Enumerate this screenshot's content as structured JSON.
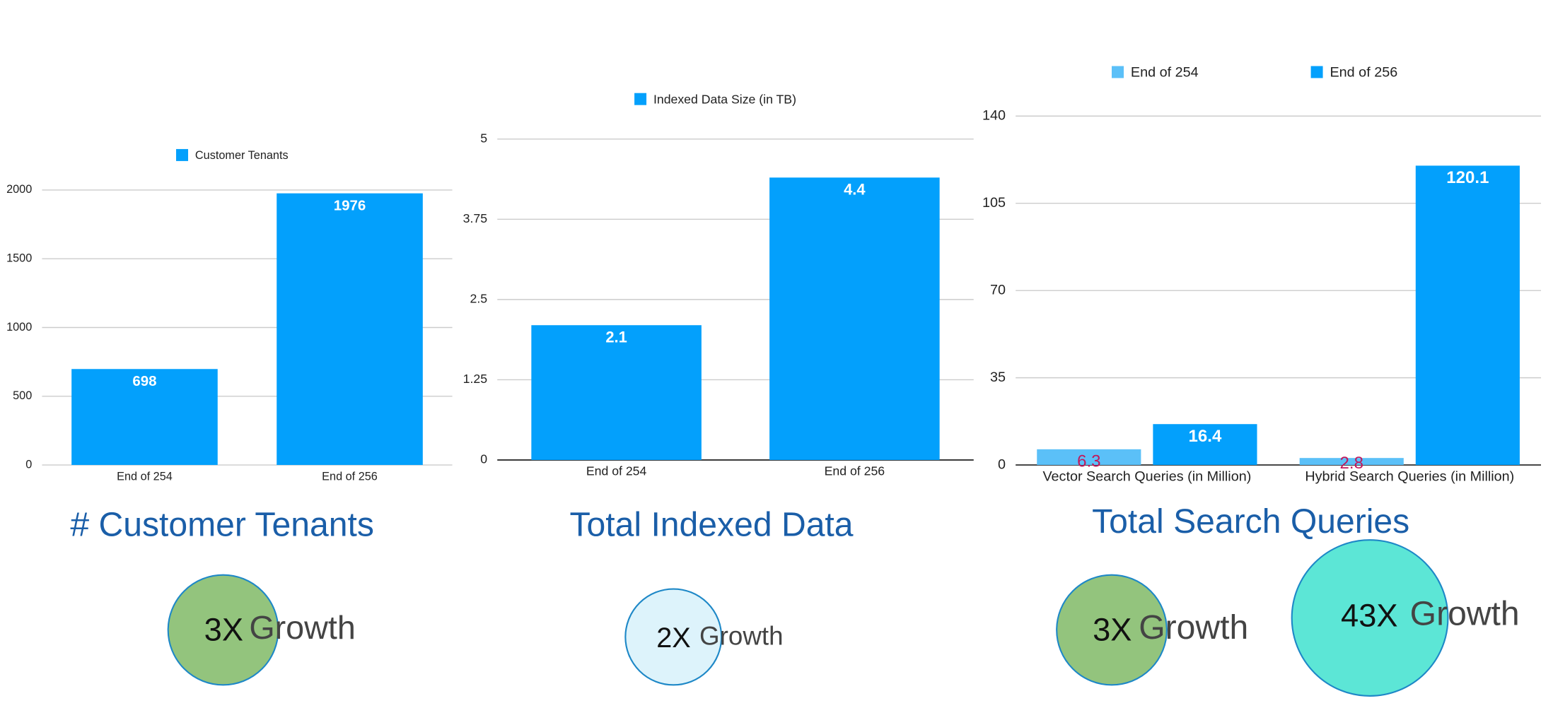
{
  "chart_data": [
    {
      "type": "bar",
      "title": "# Customer Tenants",
      "categories": [
        "End of 254",
        "End of 256"
      ],
      "series": [
        {
          "name": "Customer Tenants",
          "color": "#03a0fc",
          "label_color": "#ffffff",
          "values": [
            698,
            1976
          ]
        }
      ],
      "ylim": [
        0,
        2000
      ],
      "yticks": [
        0,
        500,
        1000,
        1500,
        2000
      ],
      "grid": true,
      "annotations": [
        {
          "multiplier": "3X",
          "text": "Growth",
          "color": "#93c47d"
        }
      ]
    },
    {
      "type": "bar",
      "title": "Total Indexed Data",
      "categories": [
        "End of 254",
        "End of 256"
      ],
      "series": [
        {
          "name": "Indexed Data Size (in TB)",
          "color": "#03a0fc",
          "label_color": "#ffffff",
          "values": [
            2.1,
            4.4
          ]
        }
      ],
      "ylim": [
        0,
        5
      ],
      "yticks": [
        0,
        1.25,
        2.5,
        3.75,
        5
      ],
      "grid": true,
      "annotations": [
        {
          "multiplier": "2X",
          "text": "Growth",
          "color": "#ddf3fb"
        }
      ]
    },
    {
      "type": "bar",
      "title": "Total Search Queries",
      "categories": [
        "Vector Search Queries (in Million)",
        "Hybrid Search Queries (in Million)"
      ],
      "series": [
        {
          "name": "End of 254",
          "color": "#5bc0f8",
          "label_color": "#c2185b",
          "values": [
            6.3,
            2.8
          ]
        },
        {
          "name": "End of 256",
          "color": "#03a0fc",
          "label_color": "#ffffff",
          "values": [
            16.4,
            120.1
          ]
        }
      ],
      "ylim": [
        0,
        140
      ],
      "yticks": [
        0,
        35,
        70,
        105,
        140
      ],
      "grid": true,
      "annotations": [
        {
          "multiplier": "3X",
          "text": "Growth",
          "color": "#93c47d"
        },
        {
          "multiplier": "43X",
          "text": "Growth",
          "color": "#5ce6d6"
        }
      ]
    }
  ]
}
